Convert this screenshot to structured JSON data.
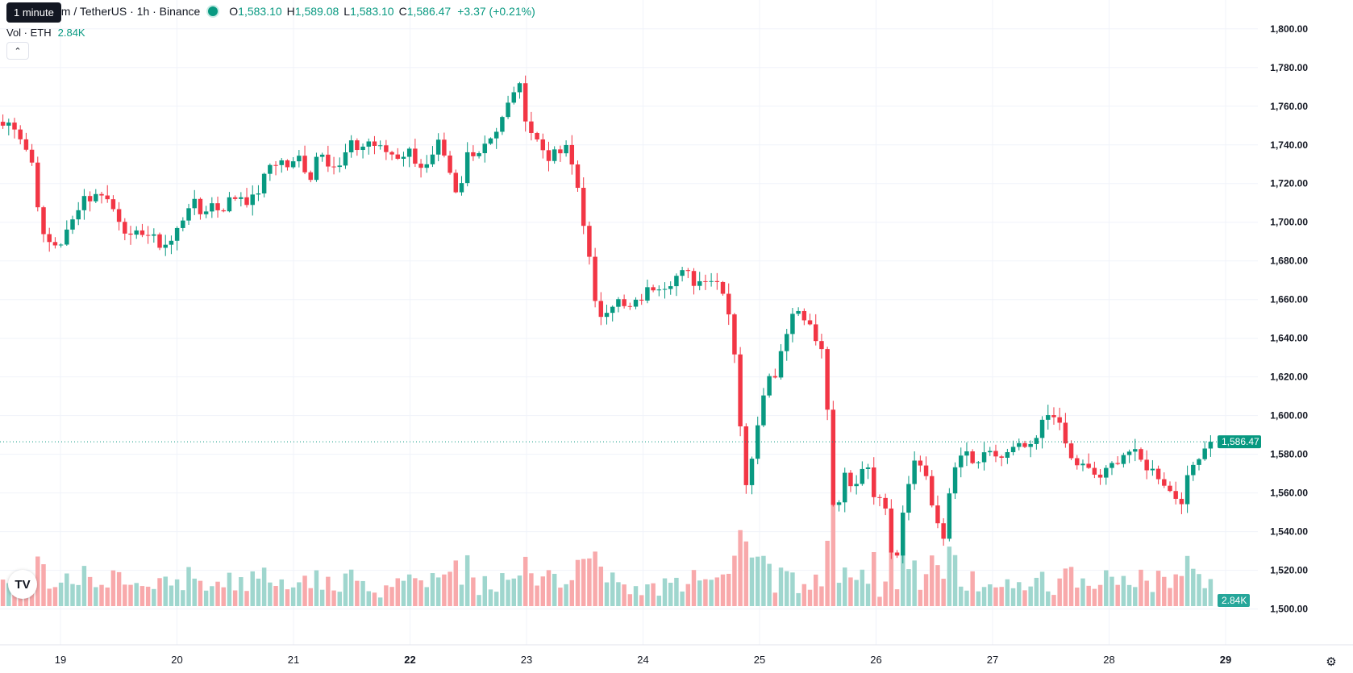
{
  "header": {
    "tooltip": "1 minute",
    "symbol_title": "um / TetherUS · 1h · Binance",
    "open_label": "O",
    "open": "1,583.10",
    "high_label": "H",
    "high": "1,589.08",
    "low_label": "L",
    "low": "1,583.10",
    "close_label": "C",
    "close": "1,586.47",
    "change": "+3.37 (+0.21%)"
  },
  "volume_legend": {
    "label": "Vol · ETH",
    "value": "2.84K"
  },
  "colors": {
    "up": "#089981",
    "down": "#f23645",
    "vol_up": "#9fd6ce",
    "vol_down": "#f8a9ab",
    "grid": "#f0f3fa"
  },
  "icons": {
    "collapse": "chevron-up-icon",
    "logo": "tradingview-logo-icon",
    "settings": "gear-icon"
  },
  "chart_data": {
    "type": "candlestick",
    "timeframe": "1h",
    "y_ticks": [
      "1,800.00",
      "1,780.00",
      "1,760.00",
      "1,740.00",
      "1,720.00",
      "1,700.00",
      "1,680.00",
      "1,660.00",
      "1,640.00",
      "1,620.00",
      "1,600.00",
      "1,580.00",
      "1,560.00",
      "1,540.00",
      "1,520.00",
      "1,500.00"
    ],
    "y_tick_values": [
      1800,
      1780,
      1760,
      1740,
      1720,
      1700,
      1680,
      1660,
      1640,
      1620,
      1600,
      1580,
      1560,
      1540,
      1520,
      1500
    ],
    "ylim": [
      1494,
      1802
    ],
    "x_ticks": [
      "19",
      "20",
      "21",
      "22",
      "23",
      "24",
      "25",
      "26",
      "27",
      "28",
      "29"
    ],
    "x_tick_bold": [
      false,
      false,
      false,
      true,
      false,
      false,
      false,
      false,
      false,
      false,
      true
    ],
    "price_label": "1,586.47",
    "price_value": 1586.47,
    "volume_label": "2.84K",
    "volume_max": 28000,
    "path": [
      [
        0,
        1750
      ],
      [
        1,
        1752
      ],
      [
        2,
        1742
      ],
      [
        3,
        1730
      ],
      [
        4,
        1692
      ],
      [
        5,
        1688
      ],
      [
        6,
        1690
      ],
      [
        7,
        1700
      ],
      [
        8,
        1714
      ],
      [
        9,
        1712
      ],
      [
        10,
        1716
      ],
      [
        11,
        1708
      ],
      [
        12,
        1700
      ],
      [
        13,
        1690
      ],
      [
        14,
        1696
      ],
      [
        15,
        1692
      ],
      [
        16,
        1688
      ],
      [
        17,
        1690
      ],
      [
        18,
        1700
      ],
      [
        19,
        1712
      ],
      [
        20,
        1704
      ],
      [
        21,
        1710
      ],
      [
        22,
        1706
      ],
      [
        23,
        1712
      ],
      [
        24,
        1714
      ],
      [
        25,
        1710
      ],
      [
        26,
        1718
      ],
      [
        27,
        1730
      ],
      [
        28,
        1732
      ],
      [
        29,
        1728
      ],
      [
        30,
        1734
      ],
      [
        31,
        1722
      ],
      [
        32,
        1740
      ],
      [
        33,
        1730
      ],
      [
        34,
        1728
      ],
      [
        35,
        1740
      ],
      [
        36,
        1738
      ],
      [
        37,
        1742
      ],
      [
        38,
        1738
      ],
      [
        39,
        1736
      ],
      [
        40,
        1734
      ],
      [
        41,
        1737
      ],
      [
        42,
        1730
      ],
      [
        43,
        1728
      ],
      [
        44,
        1740
      ],
      [
        45,
        1726
      ],
      [
        46,
        1710
      ],
      [
        47,
        1738
      ],
      [
        48,
        1736
      ],
      [
        49,
        1744
      ],
      [
        50,
        1748
      ],
      [
        51,
        1760
      ],
      [
        52,
        1774
      ],
      [
        53,
        1750
      ],
      [
        54,
        1742
      ],
      [
        55,
        1734
      ],
      [
        56,
        1735
      ],
      [
        57,
        1738
      ],
      [
        58,
        1720
      ],
      [
        59,
        1690
      ],
      [
        60,
        1650
      ],
      [
        61,
        1656
      ],
      [
        62,
        1660
      ],
      [
        63,
        1654
      ],
      [
        64,
        1658
      ],
      [
        65,
        1664
      ],
      [
        66,
        1668
      ],
      [
        67,
        1668
      ],
      [
        68,
        1672
      ],
      [
        69,
        1674
      ],
      [
        70,
        1668
      ],
      [
        71,
        1672
      ],
      [
        72,
        1670
      ],
      [
        73,
        1664
      ],
      [
        74,
        1630
      ],
      [
        75,
        1560
      ],
      [
        76,
        1590
      ],
      [
        77,
        1618
      ],
      [
        78,
        1622
      ],
      [
        79,
        1642
      ],
      [
        80,
        1656
      ],
      [
        81,
        1652
      ],
      [
        82,
        1640
      ],
      [
        83,
        1630
      ],
      [
        84,
        1540
      ],
      [
        85,
        1570
      ],
      [
        86,
        1562
      ],
      [
        87,
        1578
      ],
      [
        88,
        1560
      ],
      [
        89,
        1560
      ],
      [
        90,
        1520
      ],
      [
        91,
        1552
      ],
      [
        92,
        1578
      ],
      [
        93,
        1572
      ],
      [
        94,
        1550
      ],
      [
        95,
        1538
      ],
      [
        96,
        1570
      ],
      [
        97,
        1582
      ],
      [
        98,
        1574
      ],
      [
        99,
        1578
      ],
      [
        100,
        1580
      ],
      [
        101,
        1578
      ],
      [
        102,
        1582
      ],
      [
        103,
        1584
      ],
      [
        104,
        1582
      ],
      [
        105,
        1596
      ],
      [
        106,
        1604
      ],
      [
        107,
        1590
      ],
      [
        108,
        1576
      ],
      [
        109,
        1574
      ],
      [
        110,
        1570
      ],
      [
        111,
        1568
      ],
      [
        112,
        1574
      ],
      [
        113,
        1580
      ],
      [
        114,
        1582
      ],
      [
        115,
        1576
      ],
      [
        116,
        1572
      ],
      [
        117,
        1568
      ],
      [
        118,
        1560
      ],
      [
        119,
        1556
      ],
      [
        120,
        1572
      ],
      [
        121,
        1582
      ],
      [
        122,
        1586
      ]
    ],
    "candle_count": 209
  }
}
